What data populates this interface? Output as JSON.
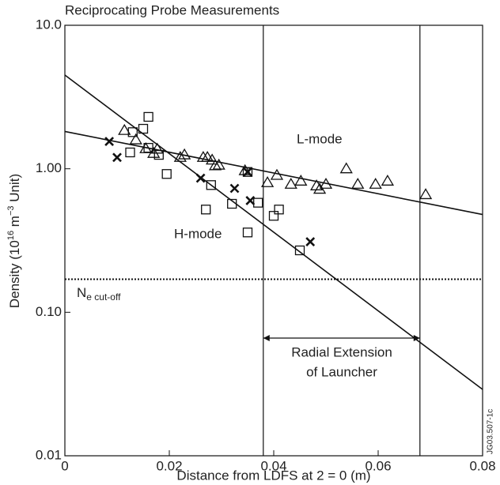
{
  "chart_data": {
    "type": "scatter",
    "title": "Reciprocating Probe Measurements",
    "xlabel": "Distance from LDFS at 2 = 0 (m)",
    "ylabel_parts": [
      "Density (10",
      "16",
      " m",
      "−3",
      " Unit)"
    ],
    "xlim": [
      0,
      0.08
    ],
    "ylim": [
      0.01,
      10
    ],
    "log_y": true,
    "xticks": [
      0,
      0.02,
      0.04,
      0.06,
      0.08
    ],
    "yticks": [
      0.01,
      {
        "value": 0.1,
        "label": "0.10"
      },
      {
        "value": 1,
        "label": "1.00"
      },
      {
        "value": 10,
        "label": "10.0"
      }
    ],
    "color": "#111111",
    "series": [
      {
        "marker": "triangle",
        "x": [
          0.0114,
          0.0136,
          0.0155,
          0.017,
          0.0177,
          0.0221,
          0.0229,
          0.0265,
          0.0273,
          0.0282,
          0.0288,
          0.0295,
          0.0345,
          0.0388,
          0.0406,
          0.0433,
          0.0452,
          0.0482,
          0.0488,
          0.05,
          0.0539,
          0.0561,
          0.0595,
          0.0618,
          0.0691
        ],
        "y": [
          1.85,
          1.59,
          1.38,
          1.28,
          1.37,
          1.2,
          1.25,
          1.2,
          1.2,
          1.15,
          1.05,
          1.06,
          0.97,
          0.8,
          0.9,
          0.78,
          0.82,
          0.76,
          0.72,
          0.78,
          1.0,
          0.78,
          0.78,
          0.82,
          0.66
        ]
      },
      {
        "marker": "square",
        "x": [
          0.013,
          0.015,
          0.016,
          0.016,
          0.0125,
          0.018,
          0.0195,
          0.027,
          0.028,
          0.032,
          0.035,
          0.037,
          0.035,
          0.04,
          0.041,
          0.045
        ],
        "y": [
          1.8,
          1.9,
          2.3,
          1.4,
          1.3,
          1.25,
          0.92,
          0.52,
          0.77,
          0.57,
          0.95,
          0.58,
          0.36,
          0.47,
          0.52,
          0.27
        ]
      },
      {
        "marker": "cross",
        "x": [
          0.0085,
          0.01,
          0.026,
          0.0325,
          0.0355,
          0.035,
          0.047
        ],
        "y": [
          1.55,
          1.2,
          0.86,
          0.73,
          0.6,
          0.95,
          0.31
        ]
      }
    ],
    "fits": [
      {
        "label": "L-mode",
        "x": [
          0,
          0.08
        ],
        "y": [
          1.82,
          0.48
        ]
      },
      {
        "label": "H-mode",
        "x": [
          0,
          0.08
        ],
        "y": [
          4.5,
          0.029
        ]
      }
    ],
    "cutoff": {
      "value": 0.17,
      "label_parts": [
        "N",
        "e cut-off"
      ]
    },
    "vlines": [
      0.038,
      0.068
    ],
    "extension_label": [
      "Radial Extension",
      "of Launcher"
    ],
    "figure_id": "JG03.507-1c"
  }
}
